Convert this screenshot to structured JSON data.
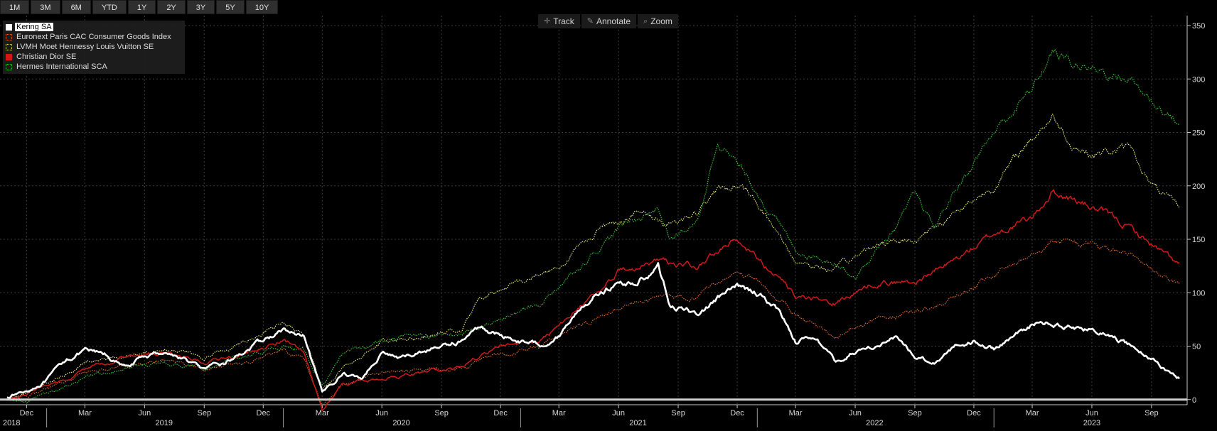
{
  "range_buttons": [
    "1M",
    "3M",
    "6M",
    "YTD",
    "1Y",
    "2Y",
    "3Y",
    "5Y",
    "10Y"
  ],
  "toolbar": {
    "track": {
      "label": "Track",
      "icon": "crosshair-icon"
    },
    "annotate": {
      "label": "Annotate",
      "icon": "pencil-icon"
    },
    "zoom": {
      "label": "Zoom",
      "icon": "magnifier-icon"
    }
  },
  "chart_data": {
    "type": "line",
    "x_axis": {
      "start": "2018-11-01",
      "end": "2023-10-15",
      "month_ticks": [
        {
          "label": "Dec",
          "date": "2018-12-01"
        },
        {
          "label": "Mar",
          "date": "2019-03-01"
        },
        {
          "label": "Jun",
          "date": "2019-06-01"
        },
        {
          "label": "Sep",
          "date": "2019-09-01"
        },
        {
          "label": "Dec",
          "date": "2019-12-01"
        },
        {
          "label": "Mar",
          "date": "2020-03-01"
        },
        {
          "label": "Jun",
          "date": "2020-06-01"
        },
        {
          "label": "Sep",
          "date": "2020-09-01"
        },
        {
          "label": "Dec",
          "date": "2020-12-01"
        },
        {
          "label": "Mar",
          "date": "2021-03-01"
        },
        {
          "label": "Jun",
          "date": "2021-06-01"
        },
        {
          "label": "Sep",
          "date": "2021-09-01"
        },
        {
          "label": "Dec",
          "date": "2021-12-01"
        },
        {
          "label": "Mar",
          "date": "2022-03-01"
        },
        {
          "label": "Jun",
          "date": "2022-06-01"
        },
        {
          "label": "Sep",
          "date": "2022-09-01"
        },
        {
          "label": "Dec",
          "date": "2022-12-01"
        },
        {
          "label": "Mar",
          "date": "2023-03-01"
        },
        {
          "label": "Jun",
          "date": "2023-06-01"
        },
        {
          "label": "Sep",
          "date": "2023-09-01"
        }
      ],
      "year_labels": [
        {
          "label": "2018",
          "date": "2018-11-01",
          "anchor": "start"
        },
        {
          "label": "2019",
          "date": "2019-07-01",
          "anchor": "middle"
        },
        {
          "label": "2020",
          "date": "2020-07-01",
          "anchor": "middle"
        },
        {
          "label": "2021",
          "date": "2021-07-01",
          "anchor": "middle"
        },
        {
          "label": "2022",
          "date": "2022-07-01",
          "anchor": "middle"
        },
        {
          "label": "2023",
          "date": "2023-06-01",
          "anchor": "middle"
        }
      ],
      "year_boundaries": [
        "2019-01-01",
        "2020-01-01",
        "2021-01-01",
        "2022-01-01",
        "2023-01-01"
      ]
    },
    "y_axis": {
      "min": -50,
      "max": 350,
      "ticks": [
        -50,
        0,
        50,
        100,
        150,
        200,
        250,
        300,
        350
      ],
      "grid": true
    },
    "zero_line": 0,
    "legend_position": "top-left",
    "series": [
      {
        "name": "Kering SA",
        "color": "#ffffff",
        "style": "solid",
        "width": 2.6,
        "selected": true,
        "points": [
          [
            "2018-11-01",
            3
          ],
          [
            "2018-12-01",
            8
          ],
          [
            "2019-01-01",
            18
          ],
          [
            "2019-02-01",
            38
          ],
          [
            "2019-03-01",
            45
          ],
          [
            "2019-04-01",
            42
          ],
          [
            "2019-05-01",
            30
          ],
          [
            "2019-06-01",
            40
          ],
          [
            "2019-07-01",
            45
          ],
          [
            "2019-08-01",
            38
          ],
          [
            "2019-09-01",
            28
          ],
          [
            "2019-10-01",
            33
          ],
          [
            "2019-11-01",
            45
          ],
          [
            "2019-12-01",
            55
          ],
          [
            "2020-01-01",
            65
          ],
          [
            "2020-02-01",
            58
          ],
          [
            "2020-03-01",
            5
          ],
          [
            "2020-04-01",
            25
          ],
          [
            "2020-05-01",
            20
          ],
          [
            "2020-06-01",
            45
          ],
          [
            "2020-07-01",
            38
          ],
          [
            "2020-08-01",
            45
          ],
          [
            "2020-09-01",
            50
          ],
          [
            "2020-10-01",
            55
          ],
          [
            "2020-11-01",
            68
          ],
          [
            "2020-12-01",
            60
          ],
          [
            "2021-01-01",
            55
          ],
          [
            "2021-02-01",
            52
          ],
          [
            "2021-03-01",
            60
          ],
          [
            "2021-04-01",
            85
          ],
          [
            "2021-05-01",
            100
          ],
          [
            "2021-06-01",
            108
          ],
          [
            "2021-07-01",
            110
          ],
          [
            "2021-08-01",
            125
          ],
          [
            "2021-08-20",
            88
          ],
          [
            "2021-10-01",
            80
          ],
          [
            "2021-11-01",
            95
          ],
          [
            "2021-12-01",
            105
          ],
          [
            "2022-01-01",
            100
          ],
          [
            "2022-02-01",
            85
          ],
          [
            "2022-03-01",
            55
          ],
          [
            "2022-04-01",
            60
          ],
          [
            "2022-05-01",
            35
          ],
          [
            "2022-06-01",
            45
          ],
          [
            "2022-07-01",
            50
          ],
          [
            "2022-08-01",
            58
          ],
          [
            "2022-09-01",
            40
          ],
          [
            "2022-10-01",
            35
          ],
          [
            "2022-11-01",
            50
          ],
          [
            "2022-12-01",
            55
          ],
          [
            "2023-01-01",
            48
          ],
          [
            "2023-02-01",
            60
          ],
          [
            "2023-03-01",
            70
          ],
          [
            "2023-04-01",
            72
          ],
          [
            "2023-05-01",
            68
          ],
          [
            "2023-06-01",
            65
          ],
          [
            "2023-07-01",
            58
          ],
          [
            "2023-08-01",
            50
          ],
          [
            "2023-09-01",
            38
          ],
          [
            "2023-10-01",
            25
          ],
          [
            "2023-10-15",
            20
          ]
        ]
      },
      {
        "name": "Euronext Paris CAC Consumer Goods Index",
        "color": "#e06a2a",
        "style": "dotted",
        "width": 1.2,
        "swatch": "outline",
        "points": [
          [
            "2018-11-01",
            0
          ],
          [
            "2018-12-01",
            2
          ],
          [
            "2019-01-01",
            10
          ],
          [
            "2019-03-01",
            25
          ],
          [
            "2019-05-01",
            32
          ],
          [
            "2019-07-01",
            38
          ],
          [
            "2019-09-01",
            28
          ],
          [
            "2019-11-01",
            35
          ],
          [
            "2020-01-01",
            45
          ],
          [
            "2020-02-01",
            40
          ],
          [
            "2020-03-01",
            -5
          ],
          [
            "2020-04-01",
            15
          ],
          [
            "2020-06-01",
            25
          ],
          [
            "2020-08-01",
            28
          ],
          [
            "2020-10-01",
            30
          ],
          [
            "2020-12-01",
            42
          ],
          [
            "2021-02-01",
            50
          ],
          [
            "2021-04-01",
            68
          ],
          [
            "2021-06-01",
            85
          ],
          [
            "2021-08-01",
            95
          ],
          [
            "2021-10-01",
            98
          ],
          [
            "2021-12-01",
            120
          ],
          [
            "2022-01-01",
            110
          ],
          [
            "2022-03-01",
            80
          ],
          [
            "2022-05-01",
            60
          ],
          [
            "2022-07-01",
            75
          ],
          [
            "2022-09-01",
            80
          ],
          [
            "2022-11-01",
            95
          ],
          [
            "2023-01-01",
            115
          ],
          [
            "2023-03-01",
            140
          ],
          [
            "2023-04-01",
            150
          ],
          [
            "2023-06-01",
            145
          ],
          [
            "2023-08-01",
            135
          ],
          [
            "2023-09-01",
            120
          ],
          [
            "2023-10-15",
            108
          ]
        ]
      },
      {
        "name": "LVMH Moet Hennessy Louis Vuitton SE",
        "color": "#e8e870",
        "style": "dotted",
        "width": 1.2,
        "swatch": "outline",
        "points": [
          [
            "2018-11-01",
            0
          ],
          [
            "2018-12-01",
            5
          ],
          [
            "2019-01-01",
            15
          ],
          [
            "2019-03-01",
            35
          ],
          [
            "2019-05-01",
            40
          ],
          [
            "2019-07-01",
            50
          ],
          [
            "2019-09-01",
            38
          ],
          [
            "2019-11-01",
            55
          ],
          [
            "2020-01-01",
            72
          ],
          [
            "2020-02-01",
            60
          ],
          [
            "2020-03-01",
            10
          ],
          [
            "2020-04-01",
            30
          ],
          [
            "2020-06-01",
            55
          ],
          [
            "2020-08-01",
            60
          ],
          [
            "2020-10-01",
            65
          ],
          [
            "2020-11-01",
            95
          ],
          [
            "2021-01-01",
            110
          ],
          [
            "2021-03-01",
            125
          ],
          [
            "2021-05-01",
            160
          ],
          [
            "2021-07-01",
            175
          ],
          [
            "2021-08-15",
            165
          ],
          [
            "2021-10-01",
            175
          ],
          [
            "2021-11-01",
            195
          ],
          [
            "2021-12-01",
            200
          ],
          [
            "2022-01-01",
            185
          ],
          [
            "2022-03-01",
            130
          ],
          [
            "2022-05-01",
            120
          ],
          [
            "2022-07-01",
            145
          ],
          [
            "2022-09-01",
            150
          ],
          [
            "2022-11-01",
            175
          ],
          [
            "2023-01-01",
            200
          ],
          [
            "2023-03-01",
            245
          ],
          [
            "2023-04-01",
            265
          ],
          [
            "2023-05-01",
            240
          ],
          [
            "2023-06-01",
            230
          ],
          [
            "2023-08-01",
            235
          ],
          [
            "2023-09-01",
            200
          ],
          [
            "2023-10-15",
            178
          ]
        ]
      },
      {
        "name": "Christian Dior SE",
        "color": "#d01818",
        "style": "solid",
        "width": 1.5,
        "swatch": "filled",
        "points": [
          [
            "2018-11-01",
            0
          ],
          [
            "2018-12-01",
            5
          ],
          [
            "2019-01-01",
            12
          ],
          [
            "2019-03-01",
            28
          ],
          [
            "2019-05-01",
            38
          ],
          [
            "2019-07-01",
            45
          ],
          [
            "2019-09-01",
            35
          ],
          [
            "2019-11-01",
            42
          ],
          [
            "2020-01-01",
            55
          ],
          [
            "2020-02-01",
            45
          ],
          [
            "2020-03-01",
            -12
          ],
          [
            "2020-04-01",
            15
          ],
          [
            "2020-06-01",
            20
          ],
          [
            "2020-08-01",
            25
          ],
          [
            "2020-10-01",
            30
          ],
          [
            "2020-12-01",
            50
          ],
          [
            "2021-02-01",
            55
          ],
          [
            "2021-04-01",
            85
          ],
          [
            "2021-06-01",
            120
          ],
          [
            "2021-08-01",
            130
          ],
          [
            "2021-10-01",
            125
          ],
          [
            "2021-12-01",
            150
          ],
          [
            "2022-01-01",
            135
          ],
          [
            "2022-03-01",
            95
          ],
          [
            "2022-05-01",
            90
          ],
          [
            "2022-07-01",
            110
          ],
          [
            "2022-09-01",
            110
          ],
          [
            "2022-11-01",
            130
          ],
          [
            "2023-01-01",
            155
          ],
          [
            "2023-03-01",
            170
          ],
          [
            "2023-04-01",
            195
          ],
          [
            "2023-06-01",
            180
          ],
          [
            "2023-08-01",
            160
          ],
          [
            "2023-09-01",
            145
          ],
          [
            "2023-10-15",
            125
          ]
        ]
      },
      {
        "name": "Hermes International SCA",
        "color": "#34c434",
        "style": "dotted",
        "width": 1.2,
        "swatch": "outline",
        "points": [
          [
            "2018-11-01",
            0
          ],
          [
            "2018-12-01",
            -2
          ],
          [
            "2019-01-01",
            5
          ],
          [
            "2019-03-01",
            20
          ],
          [
            "2019-05-01",
            30
          ],
          [
            "2019-07-01",
            35
          ],
          [
            "2019-09-01",
            28
          ],
          [
            "2019-11-01",
            40
          ],
          [
            "2020-01-01",
            50
          ],
          [
            "2020-02-01",
            45
          ],
          [
            "2020-03-01",
            15
          ],
          [
            "2020-04-01",
            40
          ],
          [
            "2020-06-01",
            55
          ],
          [
            "2020-08-01",
            60
          ],
          [
            "2020-10-01",
            60
          ],
          [
            "2020-12-01",
            75
          ],
          [
            "2021-02-01",
            90
          ],
          [
            "2021-04-01",
            125
          ],
          [
            "2021-06-01",
            160
          ],
          [
            "2021-08-01",
            180
          ],
          [
            "2021-08-20",
            150
          ],
          [
            "2021-10-01",
            165
          ],
          [
            "2021-11-01",
            245
          ],
          [
            "2021-12-01",
            220
          ],
          [
            "2022-01-01",
            195
          ],
          [
            "2022-03-01",
            140
          ],
          [
            "2022-05-01",
            130
          ],
          [
            "2022-06-01",
            115
          ],
          [
            "2022-08-01",
            160
          ],
          [
            "2022-09-01",
            190
          ],
          [
            "2022-10-01",
            160
          ],
          [
            "2022-11-01",
            195
          ],
          [
            "2023-01-01",
            250
          ],
          [
            "2023-03-01",
            290
          ],
          [
            "2023-04-01",
            325
          ],
          [
            "2023-05-01",
            315
          ],
          [
            "2023-06-01",
            310
          ],
          [
            "2023-08-01",
            300
          ],
          [
            "2023-09-01",
            280
          ],
          [
            "2023-10-15",
            258
          ]
        ]
      }
    ]
  }
}
